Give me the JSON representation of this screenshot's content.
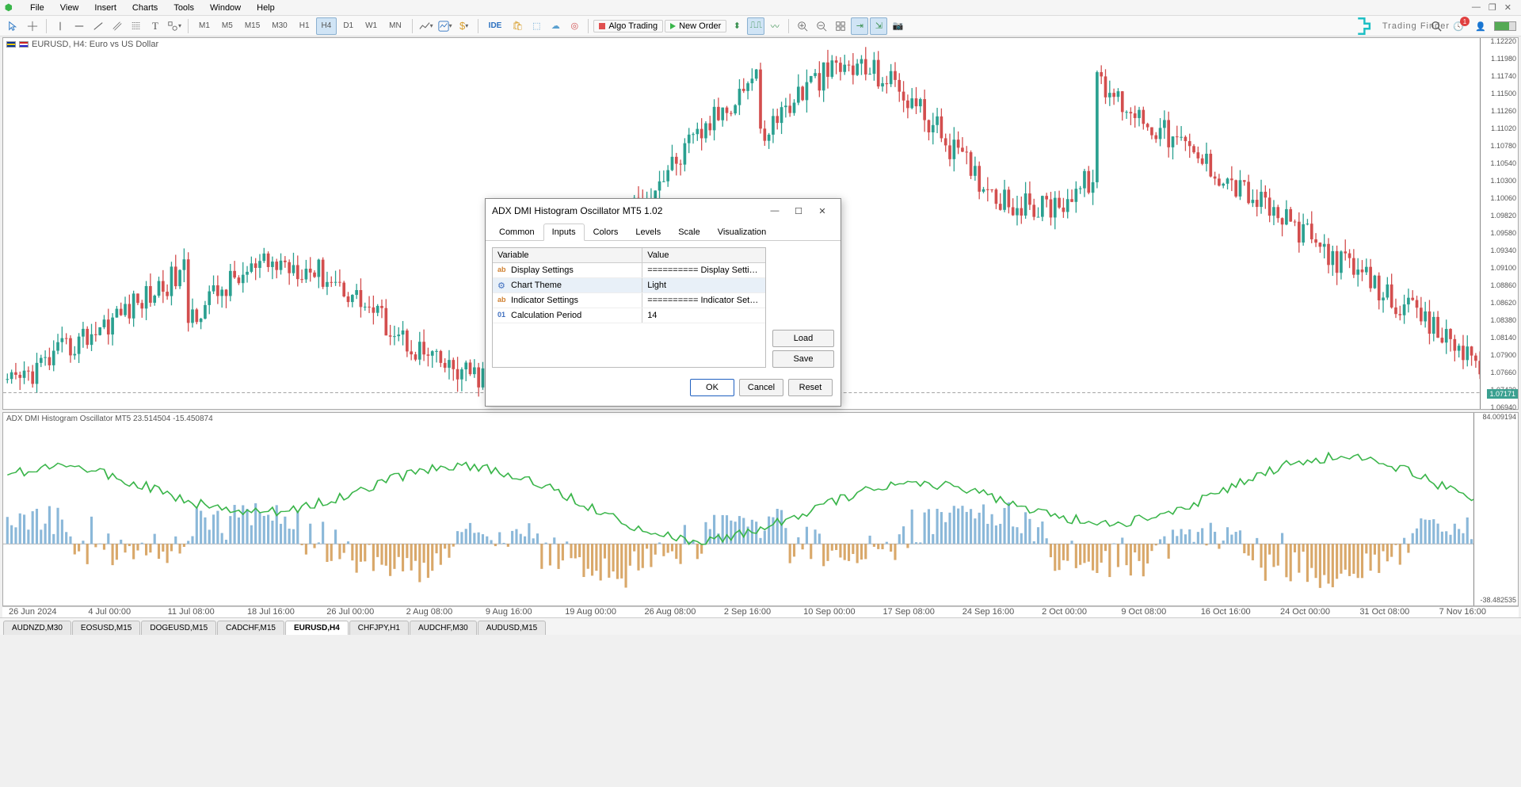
{
  "menu": {
    "items": [
      "File",
      "View",
      "Insert",
      "Charts",
      "Tools",
      "Window",
      "Help"
    ]
  },
  "window_controls": {
    "min": "—",
    "restore": "❐",
    "close": "✕"
  },
  "toolbar": {
    "timeframes": [
      "M1",
      "M5",
      "M15",
      "M30",
      "H1",
      "H4",
      "D1",
      "W1",
      "MN"
    ],
    "active_tf": "H4",
    "algo": "Algo Trading",
    "neworder": "New Order",
    "ide": "IDE"
  },
  "brand": {
    "name": "Trading Finder"
  },
  "notif_count": "1",
  "chart": {
    "title": "EURUSD, H4:  Euro vs US Dollar",
    "price_ticks": [
      "1.12220",
      "1.11980",
      "1.11740",
      "1.11500",
      "1.11260",
      "1.11020",
      "1.10780",
      "1.10540",
      "1.10300",
      "1.10060",
      "1.09820",
      "1.09580",
      "1.09340",
      "1.09100",
      "1.08860",
      "1.08620",
      "1.08380",
      "1.08140",
      "1.07900",
      "1.07660",
      "1.07420",
      "1.06940"
    ],
    "price_current": "1.07171",
    "ylim_top": 1.1222,
    "ylim_bottom": 1.0694,
    "colors": {
      "up": "#2aa090",
      "down": "#d34e4e",
      "grid": "#eaeaea",
      "priceline": "#888"
    }
  },
  "indicator": {
    "title": "ADX DMI Histogram Oscillator MT5 23.514504 -15.450874",
    "top_label": "84.009194",
    "bottom_label": "-38.482535",
    "colors": {
      "line": "#3ab54a",
      "hist_pos": "#8bb8d9",
      "hist_neg": "#d9a86a",
      "zero": "#999"
    }
  },
  "timeaxis": [
    "26 Jun 2024",
    "4 Jul 00:00",
    "11 Jul 08:00",
    "18 Jul 16:00",
    "26 Jul 00:00",
    "2 Aug 08:00",
    "9 Aug 16:00",
    "19 Aug 00:00",
    "26 Aug 08:00",
    "2 Sep 16:00",
    "10 Sep 00:00",
    "17 Sep 08:00",
    "24 Sep 16:00",
    "2 Oct 00:00",
    "9 Oct 08:00",
    "16 Oct 16:00",
    "24 Oct 00:00",
    "31 Oct 08:00",
    "7 Nov 16:00"
  ],
  "bottom_tabs": {
    "items": [
      "AUDNZD,M30",
      "EOSUSD,M15",
      "DOGEUSD,M15",
      "CADCHF,M15",
      "EURUSD,H4",
      "CHFJPY,H1",
      "AUDCHF,M30",
      "AUDUSD,M15"
    ],
    "active": "EURUSD,H4"
  },
  "dialog": {
    "title": "ADX DMI Histogram Oscillator MT5 1.02",
    "tabs": [
      "Common",
      "Inputs",
      "Colors",
      "Levels",
      "Scale",
      "Visualization"
    ],
    "active_tab": "Inputs",
    "grid": {
      "col_var": "Variable",
      "col_val": "Value",
      "rows": [
        {
          "icon": "ab",
          "var": "Display Settings",
          "val": "========== Display Settings ======..."
        },
        {
          "icon": "gear",
          "var": "Chart Theme",
          "val": "Light",
          "sel": true
        },
        {
          "icon": "ab",
          "var": "Indicator Settings",
          "val": "========== Indicator Settings =====..."
        },
        {
          "icon": "01",
          "var": "Calculation Period",
          "val": "14"
        }
      ]
    },
    "buttons": {
      "load": "Load",
      "save": "Save",
      "ok": "OK",
      "cancel": "Cancel",
      "reset": "Reset"
    }
  }
}
